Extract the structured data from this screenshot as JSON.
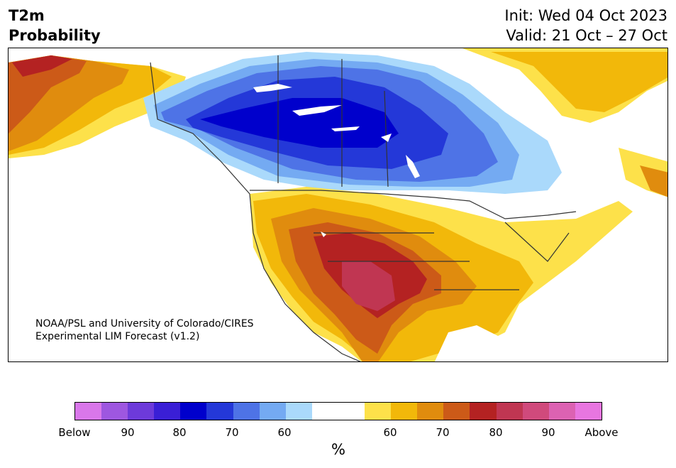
{
  "header": {
    "title_line1": "T2m",
    "title_line2": "Probability",
    "init": "Init: Wed 04 Oct 2023",
    "valid": "Valid: 21 Oct – 27 Oct"
  },
  "credit": {
    "line1": "NOAA/PSL and University of Colorado/CIRES",
    "line2": "Experimental LIM Forecast (v1.2)"
  },
  "colorbar": {
    "colors": [
      "#d977ea",
      "#9e57e0",
      "#6d3ada",
      "#3a1fd6",
      "#0000cc",
      "#2438d8",
      "#4e73e6",
      "#74aaf2",
      "#aad9fb",
      "#ffffff",
      "#ffffff",
      "#fde14a",
      "#f2b80a",
      "#e08c0e",
      "#cc5a18",
      "#b42222",
      "#c03652",
      "#d04a7c",
      "#dc62b2",
      "#e876e0"
    ],
    "tick_labels": [
      "Below",
      "90",
      "80",
      "70",
      "60",
      "60",
      "70",
      "80",
      "90",
      "Above"
    ],
    "unit": "%"
  },
  "legend_meaning": {
    "cold_colors": "Below",
    "warm_colors": "Above"
  }
}
